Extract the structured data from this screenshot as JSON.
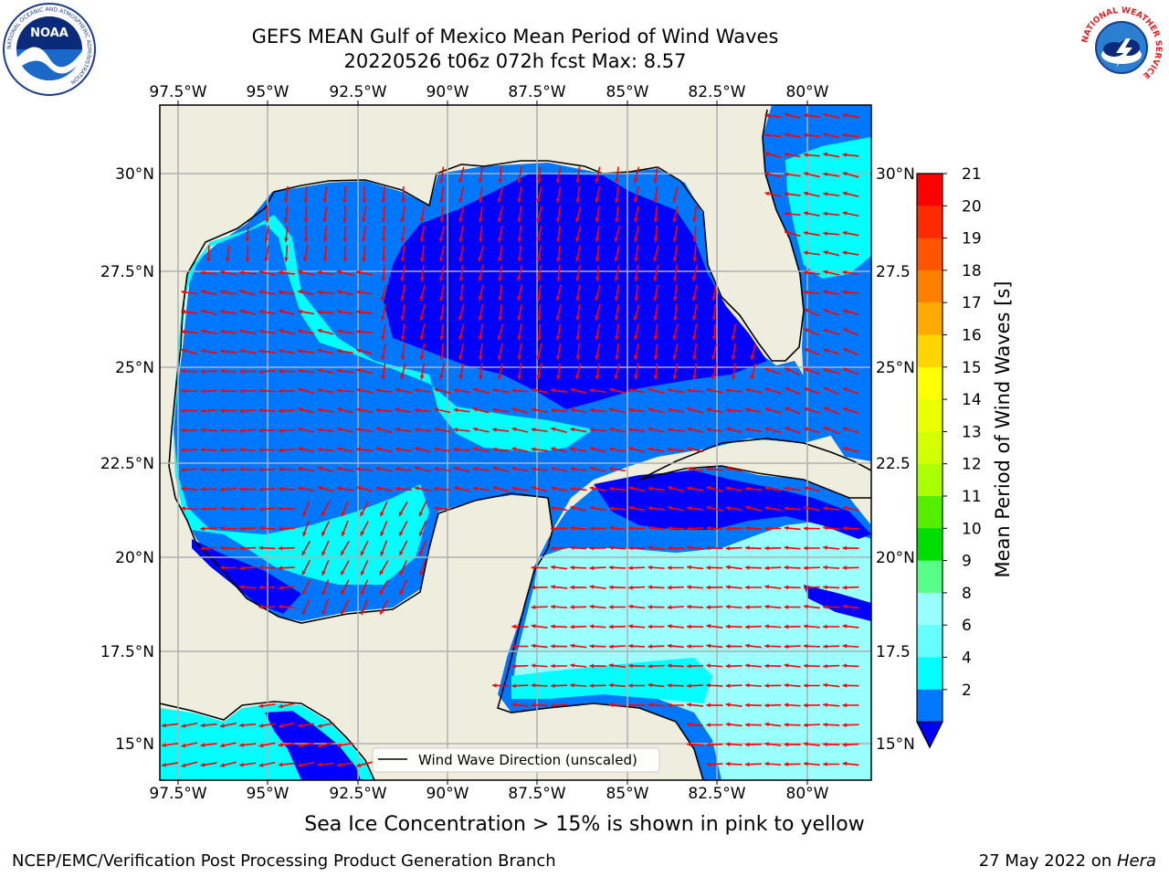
{
  "header": {
    "title_line1": "GEFS MEAN Gulf of Mexico Mean Period of Wind Waves",
    "title_line2": "20220526 t06z 072h fcst   Max: 8.57"
  },
  "logos": {
    "left": "noara-logo",
    "left_text": "NOAA",
    "left_ring_text": "NATIONAL OCEANIC AND ATMOSPHERIC ADMINISTRATION",
    "left_ring_bottom": "U.S. DEPARTMENT OF COMMERCE",
    "right": "nws-logo",
    "right_ring_text": "NATIONAL WEATHER SERVICE"
  },
  "map": {
    "lon_labels": [
      "97.5°W",
      "95°W",
      "92.5°W",
      "90°W",
      "87.5°W",
      "85°W",
      "82.5°W",
      "80°W"
    ],
    "lat_labels_left": [
      "30°N",
      "27.5°N",
      "25°N",
      "22.5°N",
      "20°N",
      "17.5°N",
      "15°N"
    ],
    "lat_labels_right": [
      "30°N",
      "27.5",
      "25°N",
      "22.5",
      "20°N",
      "17.5",
      "15°N"
    ],
    "legend_text": "Wind Wave Direction (unscaled)",
    "colors": {
      "land": "#eeedde",
      "ocean_low": "#0077ff",
      "ocean_mid": "#00ffff",
      "ocean_high": "#99ffff",
      "ocean_vlow": "#0000ff",
      "arrow": "#ff0000",
      "grid": "#b0b0b0"
    }
  },
  "colorbar": {
    "label": "Mean Period of Wind Waves [s]",
    "ticks": [
      "21",
      "20",
      "19",
      "18",
      "17",
      "16",
      "15",
      "14",
      "13",
      "12",
      "11",
      "10",
      "9",
      "8",
      "6",
      "4",
      "2"
    ],
    "colors": [
      "#ff0000",
      "#ff2a00",
      "#ff5500",
      "#ff8000",
      "#ffaa00",
      "#ffd400",
      "#ffff00",
      "#eaff00",
      "#d4ff00",
      "#aaff00",
      "#55ee00",
      "#00dd00",
      "#55ff88",
      "#99ffff",
      "#66ffff",
      "#00ffff",
      "#0077ff"
    ],
    "extend_color": "#0000ff"
  },
  "subtitle": "Sea Ice Concentration > 15% is shown in pink to yellow",
  "footer": {
    "left": "NCEP/EMC/Verification Post Processing Product Generation Branch",
    "right_prefix": "27 May 2022 on ",
    "right_machine": "Hera"
  }
}
